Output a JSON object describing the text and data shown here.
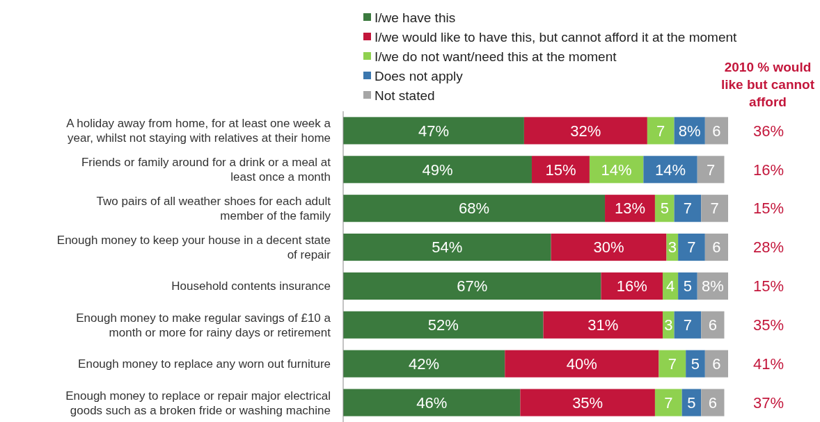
{
  "chart_data": {
    "type": "bar",
    "orientation": "horizontal",
    "stacked": true,
    "legend": "top",
    "xlim": [
      0,
      100
    ],
    "tick_labels": "y",
    "categories": [
      "A holiday away from home, for at least one week a year, whilst not staying with relatives at their home",
      "Friends or family around for a drink or a meal at least once a month",
      "Two pairs of all weather shoes for each adult member of the family",
      "Enough money to keep your house in a decent state of repair",
      "Household contents insurance",
      "Enough money to make regular savings of £10 a month or more for rainy days or retirement",
      "Enough money to replace any worn out furniture",
      "Enough money to replace or repair major electrical goods such as a broken fride or washing machine"
    ],
    "series": [
      {
        "name": "I/we have this",
        "color": "#3b7a3e",
        "values": [
          47,
          49,
          68,
          54,
          67,
          52,
          42,
          46
        ],
        "value_labels": [
          "47%",
          "49%",
          "68%",
          "54%",
          "67%",
          "52%",
          "42%",
          "46%"
        ]
      },
      {
        "name": "I/we would like to have this, but cannot afford it at the moment",
        "color": "#c3163b",
        "values": [
          32,
          15,
          13,
          30,
          16,
          31,
          40,
          35
        ],
        "value_labels": [
          "32%",
          "15%",
          "13%",
          "30%",
          "16%",
          "31%",
          "40%",
          "35%"
        ]
      },
      {
        "name": "I/we do not want/need this at the moment",
        "color": "#8fd14f",
        "values": [
          7,
          14,
          5,
          3,
          4,
          3,
          7,
          7
        ],
        "value_labels": [
          "7",
          "14%",
          "5",
          "3",
          "4",
          "3",
          "7",
          "7"
        ]
      },
      {
        "name": "Does not apply",
        "color": "#3b77ae",
        "values": [
          8,
          14,
          7,
          7,
          5,
          7,
          5,
          5
        ],
        "value_labels": [
          "8%",
          "14%",
          "7",
          "7",
          "5",
          "7",
          "5",
          "5"
        ]
      },
      {
        "name": "Not stated",
        "color": "#a6a6a6",
        "values": [
          6,
          7,
          7,
          6,
          8,
          6,
          6,
          6
        ],
        "value_labels": [
          "6",
          "7",
          "7",
          "6",
          "8%",
          "6",
          "6",
          "6"
        ]
      }
    ],
    "annotations": [
      "2010 % would like but cannot afford",
      "36%",
      "16%",
      "15%",
      "28%",
      "15%",
      "35%",
      "41%",
      "37%"
    ]
  }
}
